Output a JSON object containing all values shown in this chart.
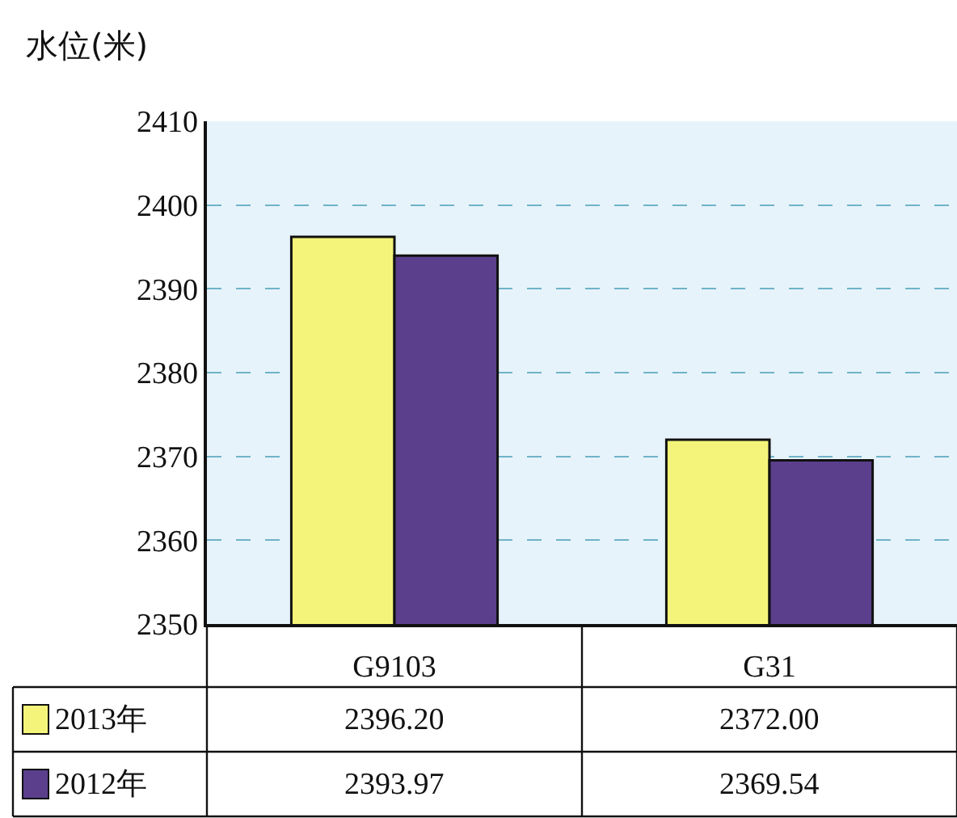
{
  "chart_data": {
    "type": "bar",
    "ylabel": "水位(米)",
    "categories": [
      "G9103",
      "G31"
    ],
    "series": [
      {
        "name": "2013年",
        "color": "#f4f47a",
        "values": [
          2396.2,
          2372.0
        ],
        "value_labels": [
          "2396.20",
          "2372.00"
        ]
      },
      {
        "name": "2012年",
        "color": "#5b3f8c",
        "values": [
          2393.97,
          2369.54
        ],
        "value_labels": [
          "2393.97",
          "2369.54"
        ]
      }
    ],
    "ylim": [
      2350,
      2410
    ],
    "yticks": [
      2350,
      2360,
      2370,
      2380,
      2390,
      2400,
      2410
    ],
    "grid": "y",
    "legend": "bottom"
  }
}
